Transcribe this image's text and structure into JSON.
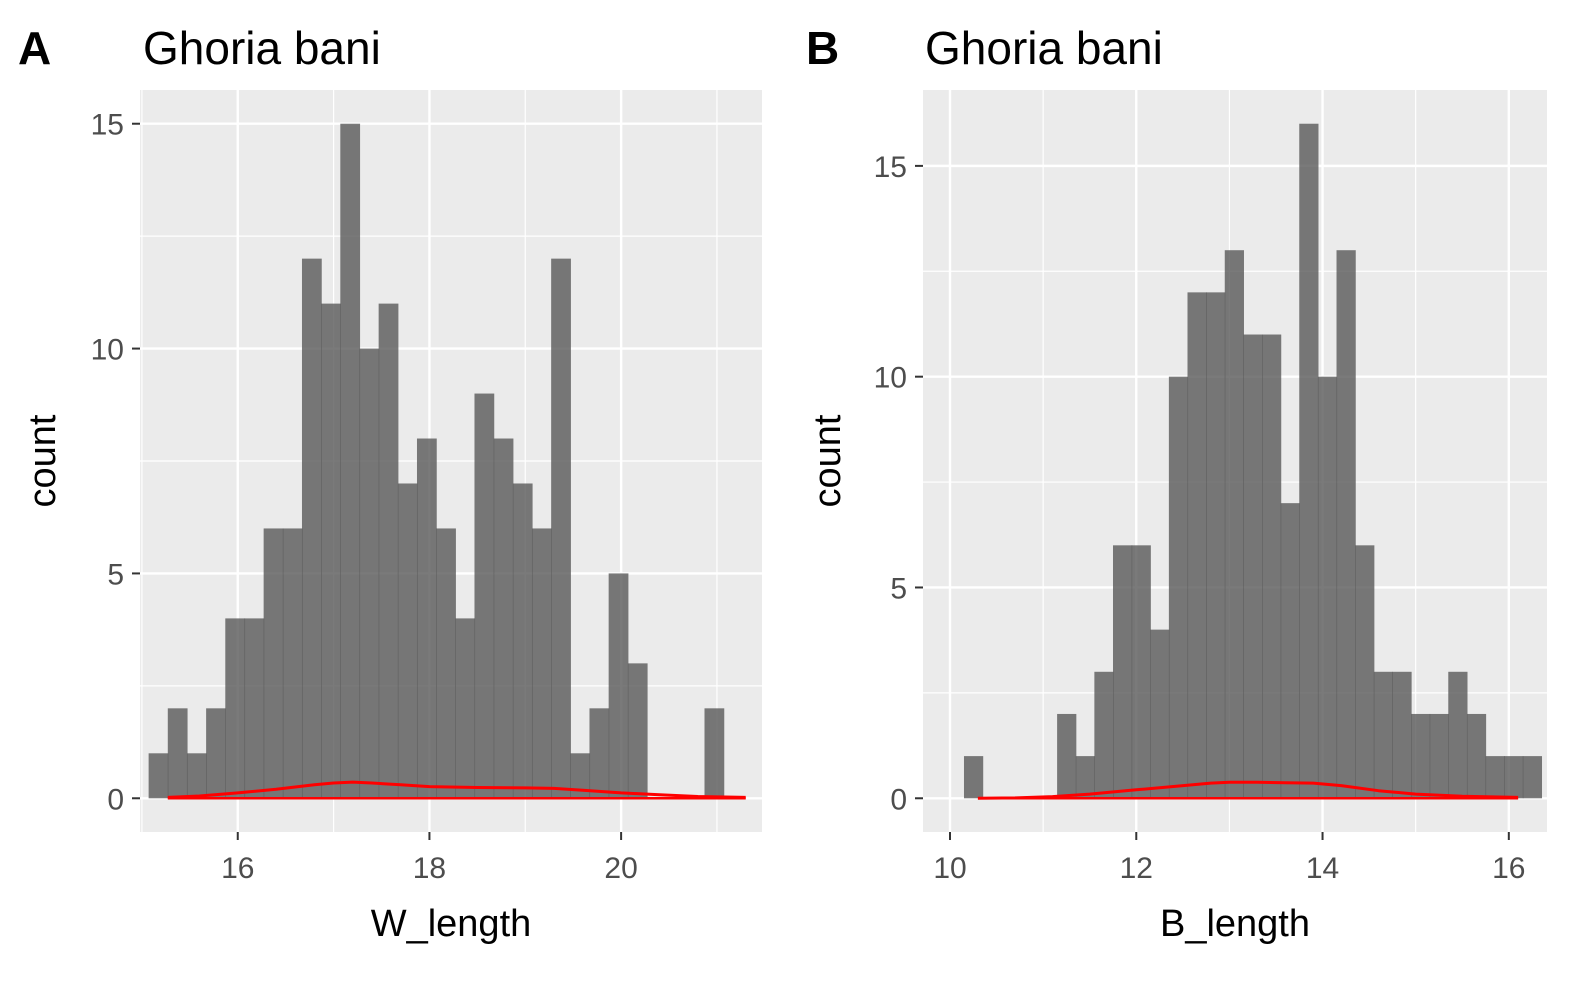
{
  "chart_data": [
    {
      "type": "bar",
      "panel_tag": "A",
      "title": "Ghoria bani",
      "xlabel": "W_length",
      "ylabel": "count",
      "xlim": [
        14.98,
        21.47
      ],
      "ylim": [
        -0.75,
        15.75
      ],
      "xticks": [
        16,
        18,
        20
      ],
      "xtick_labels": [
        "16",
        "18",
        "20"
      ],
      "xminor": [
        15,
        17,
        19,
        21
      ],
      "yticks": [
        0,
        5,
        10,
        15
      ],
      "ytick_labels": [
        "0",
        "5",
        "10",
        "15"
      ],
      "yminor": [
        2.5,
        7.5,
        12.5
      ],
      "grid": true,
      "bins": {
        "start": 15.07,
        "width": 0.2,
        "counts": [
          1,
          2,
          1,
          2,
          4,
          4,
          6,
          6,
          12,
          11,
          15,
          10,
          11,
          7,
          8,
          6,
          4,
          9,
          8,
          7,
          6,
          12,
          1,
          2,
          5,
          3,
          0,
          0,
          0,
          2
        ]
      },
      "density_curve": {
        "color": "#ff0000",
        "x": [
          15.27,
          15.6,
          16.0,
          16.4,
          16.8,
          17.0,
          17.2,
          17.4,
          17.7,
          18.0,
          18.5,
          19.0,
          19.3,
          19.6,
          20.0,
          20.4,
          20.8,
          21.3
        ],
        "y": [
          0.02,
          0.05,
          0.12,
          0.2,
          0.3,
          0.34,
          0.36,
          0.34,
          0.3,
          0.26,
          0.24,
          0.23,
          0.22,
          0.18,
          0.12,
          0.08,
          0.04,
          0.02
        ]
      }
    },
    {
      "type": "bar",
      "panel_tag": "B",
      "title": "Ghoria bani",
      "xlabel": "B_length",
      "ylabel": "count",
      "xlim": [
        9.71,
        16.41
      ],
      "ylim": [
        -0.8,
        16.8
      ],
      "xticks": [
        10,
        12,
        14,
        16
      ],
      "xtick_labels": [
        "10",
        "12",
        "14",
        "16"
      ],
      "xminor": [
        11,
        13,
        15
      ],
      "yticks": [
        0,
        5,
        10,
        15
      ],
      "ytick_labels": [
        "0",
        "5",
        "10",
        "15"
      ],
      "yminor": [
        2.5,
        7.5,
        12.5
      ],
      "grid": true,
      "bins": {
        "start": 10.15,
        "width": 0.2,
        "counts": [
          1,
          0,
          0,
          0,
          0,
          2,
          1,
          3,
          6,
          6,
          4,
          10,
          12,
          12,
          13,
          11,
          11,
          7,
          16,
          10,
          13,
          6,
          3,
          3,
          2,
          2,
          3,
          2,
          1,
          1,
          1
        ]
      },
      "density_curve": {
        "color": "#ff0000",
        "x": [
          10.3,
          10.7,
          11.1,
          11.5,
          12.0,
          12.4,
          12.8,
          13.0,
          13.3,
          13.6,
          13.9,
          14.2,
          14.6,
          15.0,
          15.5,
          16.1
        ],
        "y": [
          0.0,
          0.01,
          0.04,
          0.1,
          0.2,
          0.28,
          0.36,
          0.38,
          0.38,
          0.37,
          0.36,
          0.3,
          0.18,
          0.1,
          0.05,
          0.02
        ]
      }
    }
  ]
}
